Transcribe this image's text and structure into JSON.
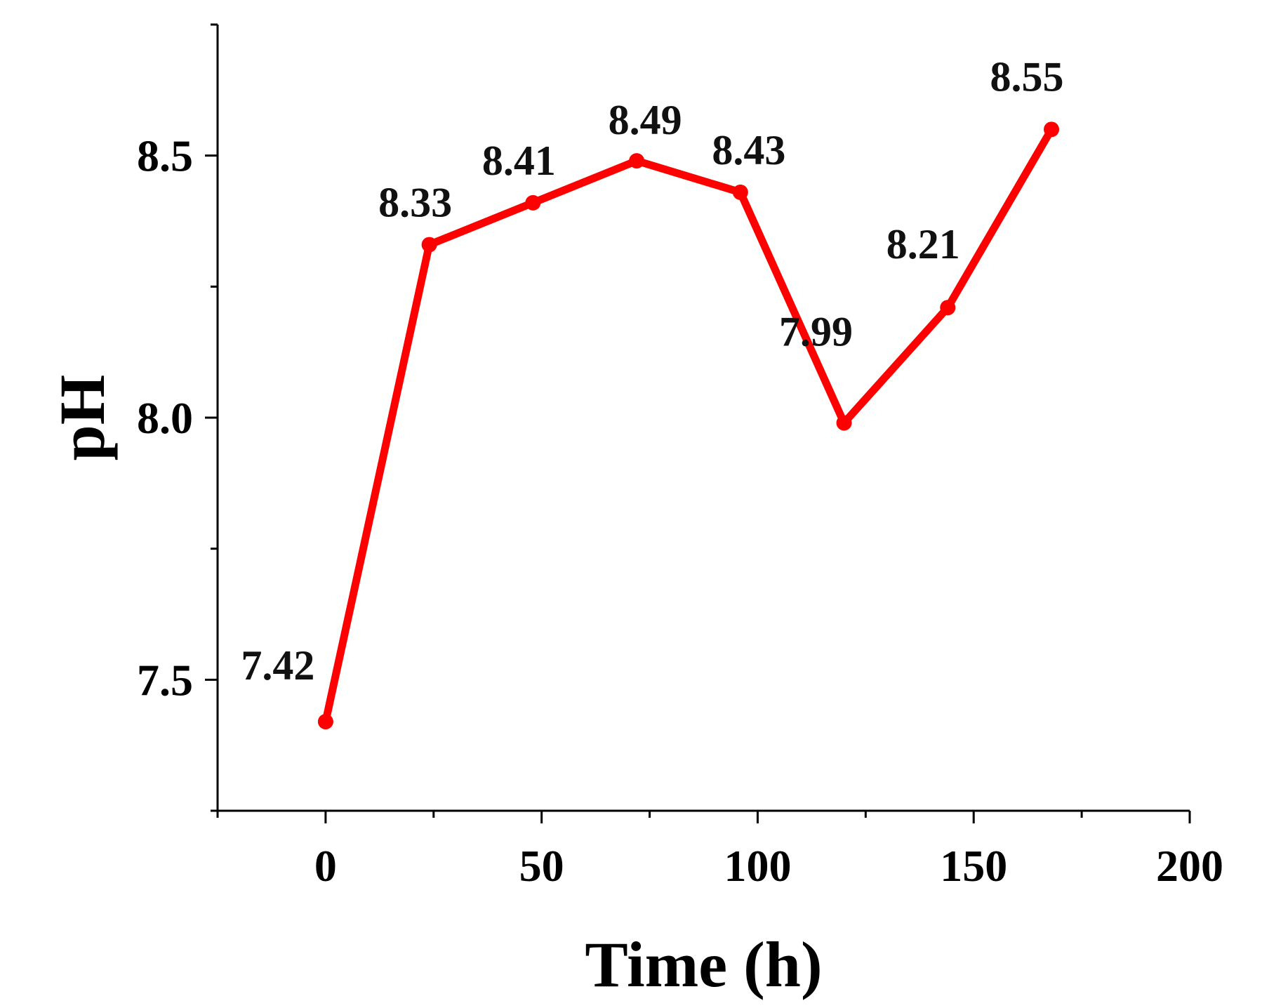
{
  "chart_data": {
    "type": "line",
    "title": "",
    "xlabel": "Time (h)",
    "ylabel": "pH",
    "xlim": [
      -25,
      200
    ],
    "ylim": [
      7.25,
      8.75
    ],
    "x_ticks": [
      0,
      50,
      100,
      150,
      200
    ],
    "x_tick_labels": [
      "0",
      "50",
      "100",
      "150",
      "200"
    ],
    "x_minor_ticks": [
      -25,
      25,
      75,
      125,
      175
    ],
    "y_ticks": [
      7.5,
      8.0,
      8.5
    ],
    "y_tick_labels": [
      "7.5",
      "8.0",
      "8.5"
    ],
    "y_minor_ticks": [
      7.25,
      7.75,
      8.25,
      8.75
    ],
    "grid": false,
    "legend": "none",
    "series": [
      {
        "name": "pH",
        "color": "#ff0000",
        "x": [
          0,
          24,
          48,
          72,
          96,
          120,
          144,
          168
        ],
        "values": [
          7.42,
          8.33,
          8.41,
          8.49,
          8.43,
          7.99,
          8.21,
          8.55
        ],
        "labels": [
          "7.42",
          "8.33",
          "8.41",
          "8.49",
          "8.43",
          "7.99",
          "8.21",
          "8.55"
        ]
      }
    ]
  }
}
